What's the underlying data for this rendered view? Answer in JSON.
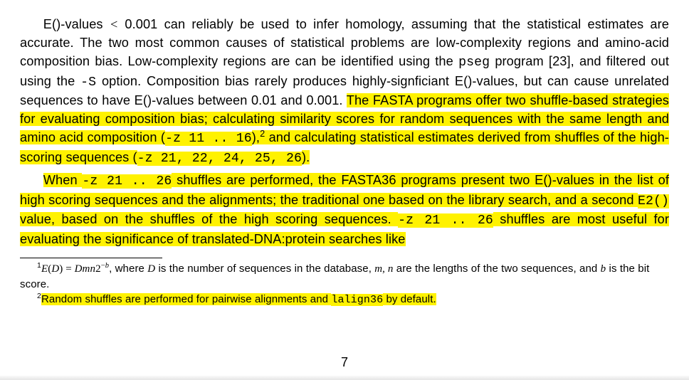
{
  "p1": {
    "s1a": "E()-values ",
    "s1b": " 0.001 can reliably be used to infer homology, assuming that the statistical estimates are accurate. The two most common causes of statistical problems are low-complexity regions and amino-acid composition bias. Low-complexity regions are can be identified using the ",
    "pseg": "pseg",
    "s2": " program [23], and filtered out using the ",
    "optS": "-S",
    "s3": " option. Composition bias rarely produces highly-signficiant E()-values, but can cause unrelated sequences to have E()-values between 0.01 and 0.001. ",
    "hl1": "The FASTA programs offer two shuffle-based strategies for evaluating composition bias; calculating similarity scores for random sequences with the same length and amino acid composition (",
    "z11": "-z 11 .. 16",
    "hl2": "),",
    "sup2": "2",
    "hl3": " and calculating statistical estimates derived from shuffles of the high-scoring sequences (",
    "z21": "-z 21, 22, 24, 25, 26",
    "hl4": ")."
  },
  "p2": {
    "hl1": "When ",
    "z21a": "-z 21 .. ",
    "hl2": " ",
    "z26": "26",
    "hl3": " shuffles are performed, the FASTA36 programs present two E()-values in the list of high scoring sequences and the alignments; the traditional one based on the library search, and a second ",
    "e2": "E2()",
    "hl4": " value, based on the shuffles of the high scoring sequences. ",
    "z21b": "-z 21 .. 26",
    "hl5": " shuffles are most useful for evaluating the significance of translated-DNA:protein searches like"
  },
  "fn1": {
    "sup": "1",
    "a": ", where ",
    "b": " is the number of sequences in the database, ",
    "c": " are the lengths of the two sequences, and ",
    "d": " is the bit score."
  },
  "fn2": {
    "sup": "2",
    "t1": "Random shuffles are performed for pairwise alignments and ",
    "lalign": "lalign36",
    "t2": " by default."
  },
  "pagenum": "7",
  "lt": "<"
}
